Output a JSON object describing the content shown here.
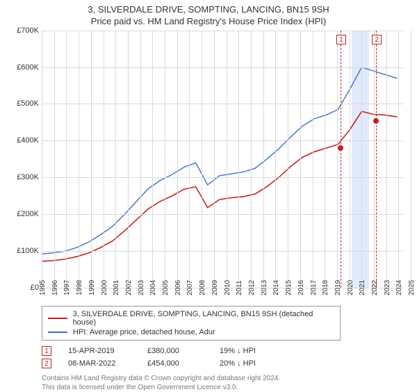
{
  "title_line1": "3, SILVERDALE DRIVE, SOMPTING, LANCING, BN15 9SH",
  "title_line2": "Price paid vs. HM Land Registry's House Price Index (HPI)",
  "title_fontsize": 13,
  "chart": {
    "type": "line",
    "background_color": "#ffffff",
    "grid_color": "#d9d9d9",
    "highlight_band_color": "#e1eafc",
    "marker_color": "#c02020",
    "xlim": [
      1995,
      2025.5
    ],
    "ylim": [
      0,
      700000
    ],
    "ytick_step": 100000,
    "yticks": [
      "£0",
      "£100K",
      "£200K",
      "£300K",
      "£400K",
      "£500K",
      "£600K",
      "£700K"
    ],
    "xticks": [
      1995,
      1996,
      1997,
      1998,
      1999,
      2000,
      2001,
      2002,
      2003,
      2004,
      2005,
      2006,
      2007,
      2008,
      2009,
      2010,
      2011,
      2012,
      2013,
      2014,
      2015,
      2016,
      2017,
      2018,
      2019,
      2020,
      2021,
      2022,
      2023,
      2024,
      2025
    ],
    "xtick_fontsize": 10,
    "ytick_fontsize": 11,
    "highlight_band_x": [
      2020.2,
      2021.6
    ],
    "series": [
      {
        "name": "price_paid",
        "label": "3, SILVERDALE DRIVE, SOMPTING, LANCING, BN15 9SH (detached house)",
        "color": "#c81e1e",
        "line_width": 1.6,
        "x": [
          1995,
          1996,
          1997,
          1998,
          1999,
          2000,
          2001,
          2002,
          2003,
          2004,
          2005,
          2006,
          2007,
          2008,
          2009,
          2010,
          2011,
          2012,
          2013,
          2014,
          2015,
          2016,
          2017,
          2018,
          2019,
          2020,
          2021,
          2022,
          2023,
          2024,
          2025
        ],
        "y": [
          72000,
          74000,
          78000,
          85000,
          95000,
          110000,
          128000,
          155000,
          185000,
          215000,
          235000,
          250000,
          268000,
          275000,
          218000,
          240000,
          245000,
          248000,
          255000,
          275000,
          300000,
          330000,
          355000,
          370000,
          380000,
          390000,
          430000,
          480000,
          472000,
          470000,
          465000
        ]
      },
      {
        "name": "hpi",
        "label": "HPI: Average price, detached house, Adur",
        "color": "#3a6fc9",
        "line_width": 1.4,
        "x": [
          1995,
          1996,
          1997,
          1998,
          1999,
          2000,
          2001,
          2002,
          2003,
          2004,
          2005,
          2006,
          2007,
          2008,
          2009,
          2010,
          2011,
          2012,
          2013,
          2014,
          2015,
          2016,
          2017,
          2018,
          2019,
          2020,
          2021,
          2022,
          2023,
          2024,
          2025
        ],
        "y": [
          92000,
          95000,
          100000,
          110000,
          125000,
          145000,
          168000,
          200000,
          235000,
          270000,
          292000,
          308000,
          328000,
          340000,
          280000,
          305000,
          310000,
          315000,
          325000,
          350000,
          378000,
          410000,
          440000,
          460000,
          470000,
          485000,
          540000,
          600000,
          590000,
          580000,
          570000
        ]
      }
    ],
    "vertical_markers": [
      {
        "label": "1",
        "x": 2019.29
      },
      {
        "label": "2",
        "x": 2022.18
      }
    ],
    "data_points": [
      {
        "x": 2019.29,
        "y": 380000
      },
      {
        "x": 2022.18,
        "y": 454000
      }
    ]
  },
  "transactions": [
    {
      "label": "1",
      "date": "15-APR-2019",
      "price": "£380,000",
      "delta": "19% ↓ HPI"
    },
    {
      "label": "2",
      "date": "08-MAR-2022",
      "price": "£454,000",
      "delta": "20% ↓ HPI"
    }
  ],
  "footer_line1": "Contains HM Land Registry data © Crown copyright and database right 2024.",
  "footer_line2": "This data is licensed under the Open Government Licence v3.0.",
  "footer_color": "#777777"
}
